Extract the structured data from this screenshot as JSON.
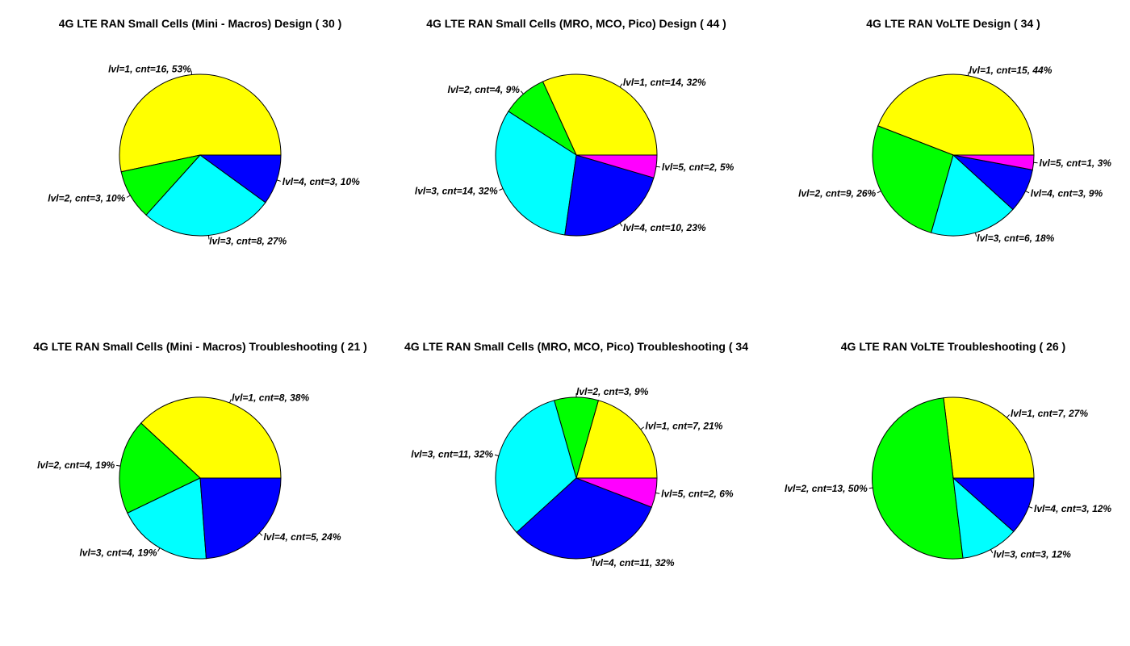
{
  "chart_data": [
    {
      "type": "pie",
      "title": "4G LTE RAN  Small Cells (Mini - Macros) Design ( 30 )",
      "slices": [
        {
          "label": "lvl=1, cnt=16, 53%",
          "value": 16,
          "color": "#ffff00"
        },
        {
          "label": "lvl=2, cnt=3, 10%",
          "value": 3,
          "color": "#00ff00"
        },
        {
          "label": "lvl=3, cnt=8, 27%",
          "value": 8,
          "color": "#00ffff"
        },
        {
          "label": "lvl=4, cnt=3, 10%",
          "value": 3,
          "color": "#0000ff"
        }
      ]
    },
    {
      "type": "pie",
      "title": "4G LTE RAN  Small Cells (MRO, MCO, Pico) Design ( 44 )",
      "slices": [
        {
          "label": "lvl=1, cnt=14, 32%",
          "value": 14,
          "color": "#ffff00"
        },
        {
          "label": "lvl=2, cnt=4, 9%",
          "value": 4,
          "color": "#00ff00"
        },
        {
          "label": "lvl=3, cnt=14, 32%",
          "value": 14,
          "color": "#00ffff"
        },
        {
          "label": "lvl=4, cnt=10, 23%",
          "value": 10,
          "color": "#0000ff"
        },
        {
          "label": "lvl=5, cnt=2, 5%",
          "value": 2,
          "color": "#ff00ff"
        }
      ]
    },
    {
      "type": "pie",
      "title": "4G LTE RAN  VoLTE Design ( 34 )",
      "slices": [
        {
          "label": "lvl=1, cnt=15, 44%",
          "value": 15,
          "color": "#ffff00"
        },
        {
          "label": "lvl=2, cnt=9, 26%",
          "value": 9,
          "color": "#00ff00"
        },
        {
          "label": "lvl=3, cnt=6, 18%",
          "value": 6,
          "color": "#00ffff"
        },
        {
          "label": "lvl=4, cnt=3, 9%",
          "value": 3,
          "color": "#0000ff"
        },
        {
          "label": "lvl=5, cnt=1, 3%",
          "value": 1,
          "color": "#ff00ff"
        }
      ]
    },
    {
      "type": "pie",
      "title": "4G LTE RAN  Small Cells (Mini - Macros) Troubleshooting ( 21 )",
      "slices": [
        {
          "label": "lvl=1, cnt=8, 38%",
          "value": 8,
          "color": "#ffff00"
        },
        {
          "label": "lvl=2, cnt=4, 19%",
          "value": 4,
          "color": "#00ff00"
        },
        {
          "label": "lvl=3, cnt=4, 19%",
          "value": 4,
          "color": "#00ffff"
        },
        {
          "label": "lvl=4, cnt=5, 24%",
          "value": 5,
          "color": "#0000ff"
        }
      ]
    },
    {
      "type": "pie",
      "title": "4G LTE RAN  Small Cells (MRO, MCO, Pico) Troubleshooting ( 34",
      "slices": [
        {
          "label": "lvl=1, cnt=7, 21%",
          "value": 7,
          "color": "#ffff00"
        },
        {
          "label": "lvl=2, cnt=3, 9%",
          "value": 3,
          "color": "#00ff00"
        },
        {
          "label": "lvl=3, cnt=11, 32%",
          "value": 11,
          "color": "#00ffff"
        },
        {
          "label": "lvl=4, cnt=11, 32%",
          "value": 11,
          "color": "#0000ff"
        },
        {
          "label": "lvl=5, cnt=2, 6%",
          "value": 2,
          "color": "#ff00ff"
        }
      ]
    },
    {
      "type": "pie",
      "title": "4G LTE RAN  VoLTE Troubleshooting ( 26 )",
      "slices": [
        {
          "label": "lvl=1, cnt=7, 27%",
          "value": 7,
          "color": "#ffff00"
        },
        {
          "label": "lvl=2, cnt=13, 50%",
          "value": 13,
          "color": "#00ff00"
        },
        {
          "label": "lvl=3, cnt=3, 12%",
          "value": 3,
          "color": "#00ffff"
        },
        {
          "label": "lvl=4, cnt=3, 12%",
          "value": 3,
          "color": "#0000ff"
        }
      ]
    }
  ]
}
